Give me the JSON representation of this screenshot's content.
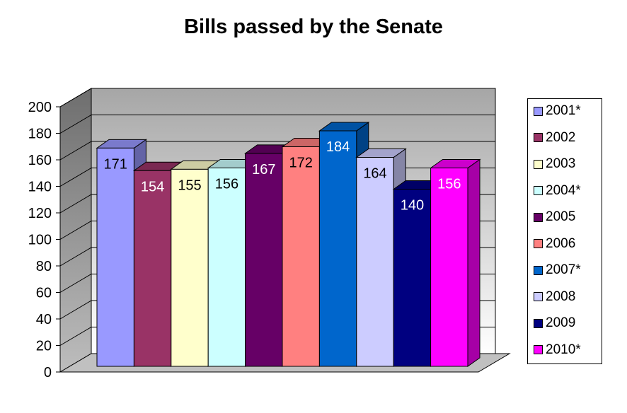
{
  "chart_data": {
    "type": "bar",
    "title": "Bills passed by the Senate",
    "categories": [
      "2001*",
      "2002",
      "2003",
      "2004*",
      "2005",
      "2006",
      "2007*",
      "2008",
      "2009",
      "2010*"
    ],
    "values": [
      171,
      154,
      155,
      156,
      167,
      172,
      184,
      164,
      140,
      156
    ],
    "colors": [
      "#9999ff",
      "#993366",
      "#ffffcc",
      "#ccffff",
      "#660066",
      "#ff8080",
      "#0066cc",
      "#ccccff",
      "#000080",
      "#ff00ff"
    ],
    "value_label_colors": [
      "#000000",
      "#ffffff",
      "#000000",
      "#000000",
      "#ffffff",
      "#000000",
      "#ffffff",
      "#000000",
      "#ffffff",
      "#ffffff"
    ],
    "ylim": [
      0,
      200
    ],
    "yticks": [
      0,
      20,
      40,
      60,
      80,
      100,
      120,
      140,
      160,
      180,
      200
    ],
    "style": "3d-column",
    "grid": true,
    "legend_position": "right"
  }
}
